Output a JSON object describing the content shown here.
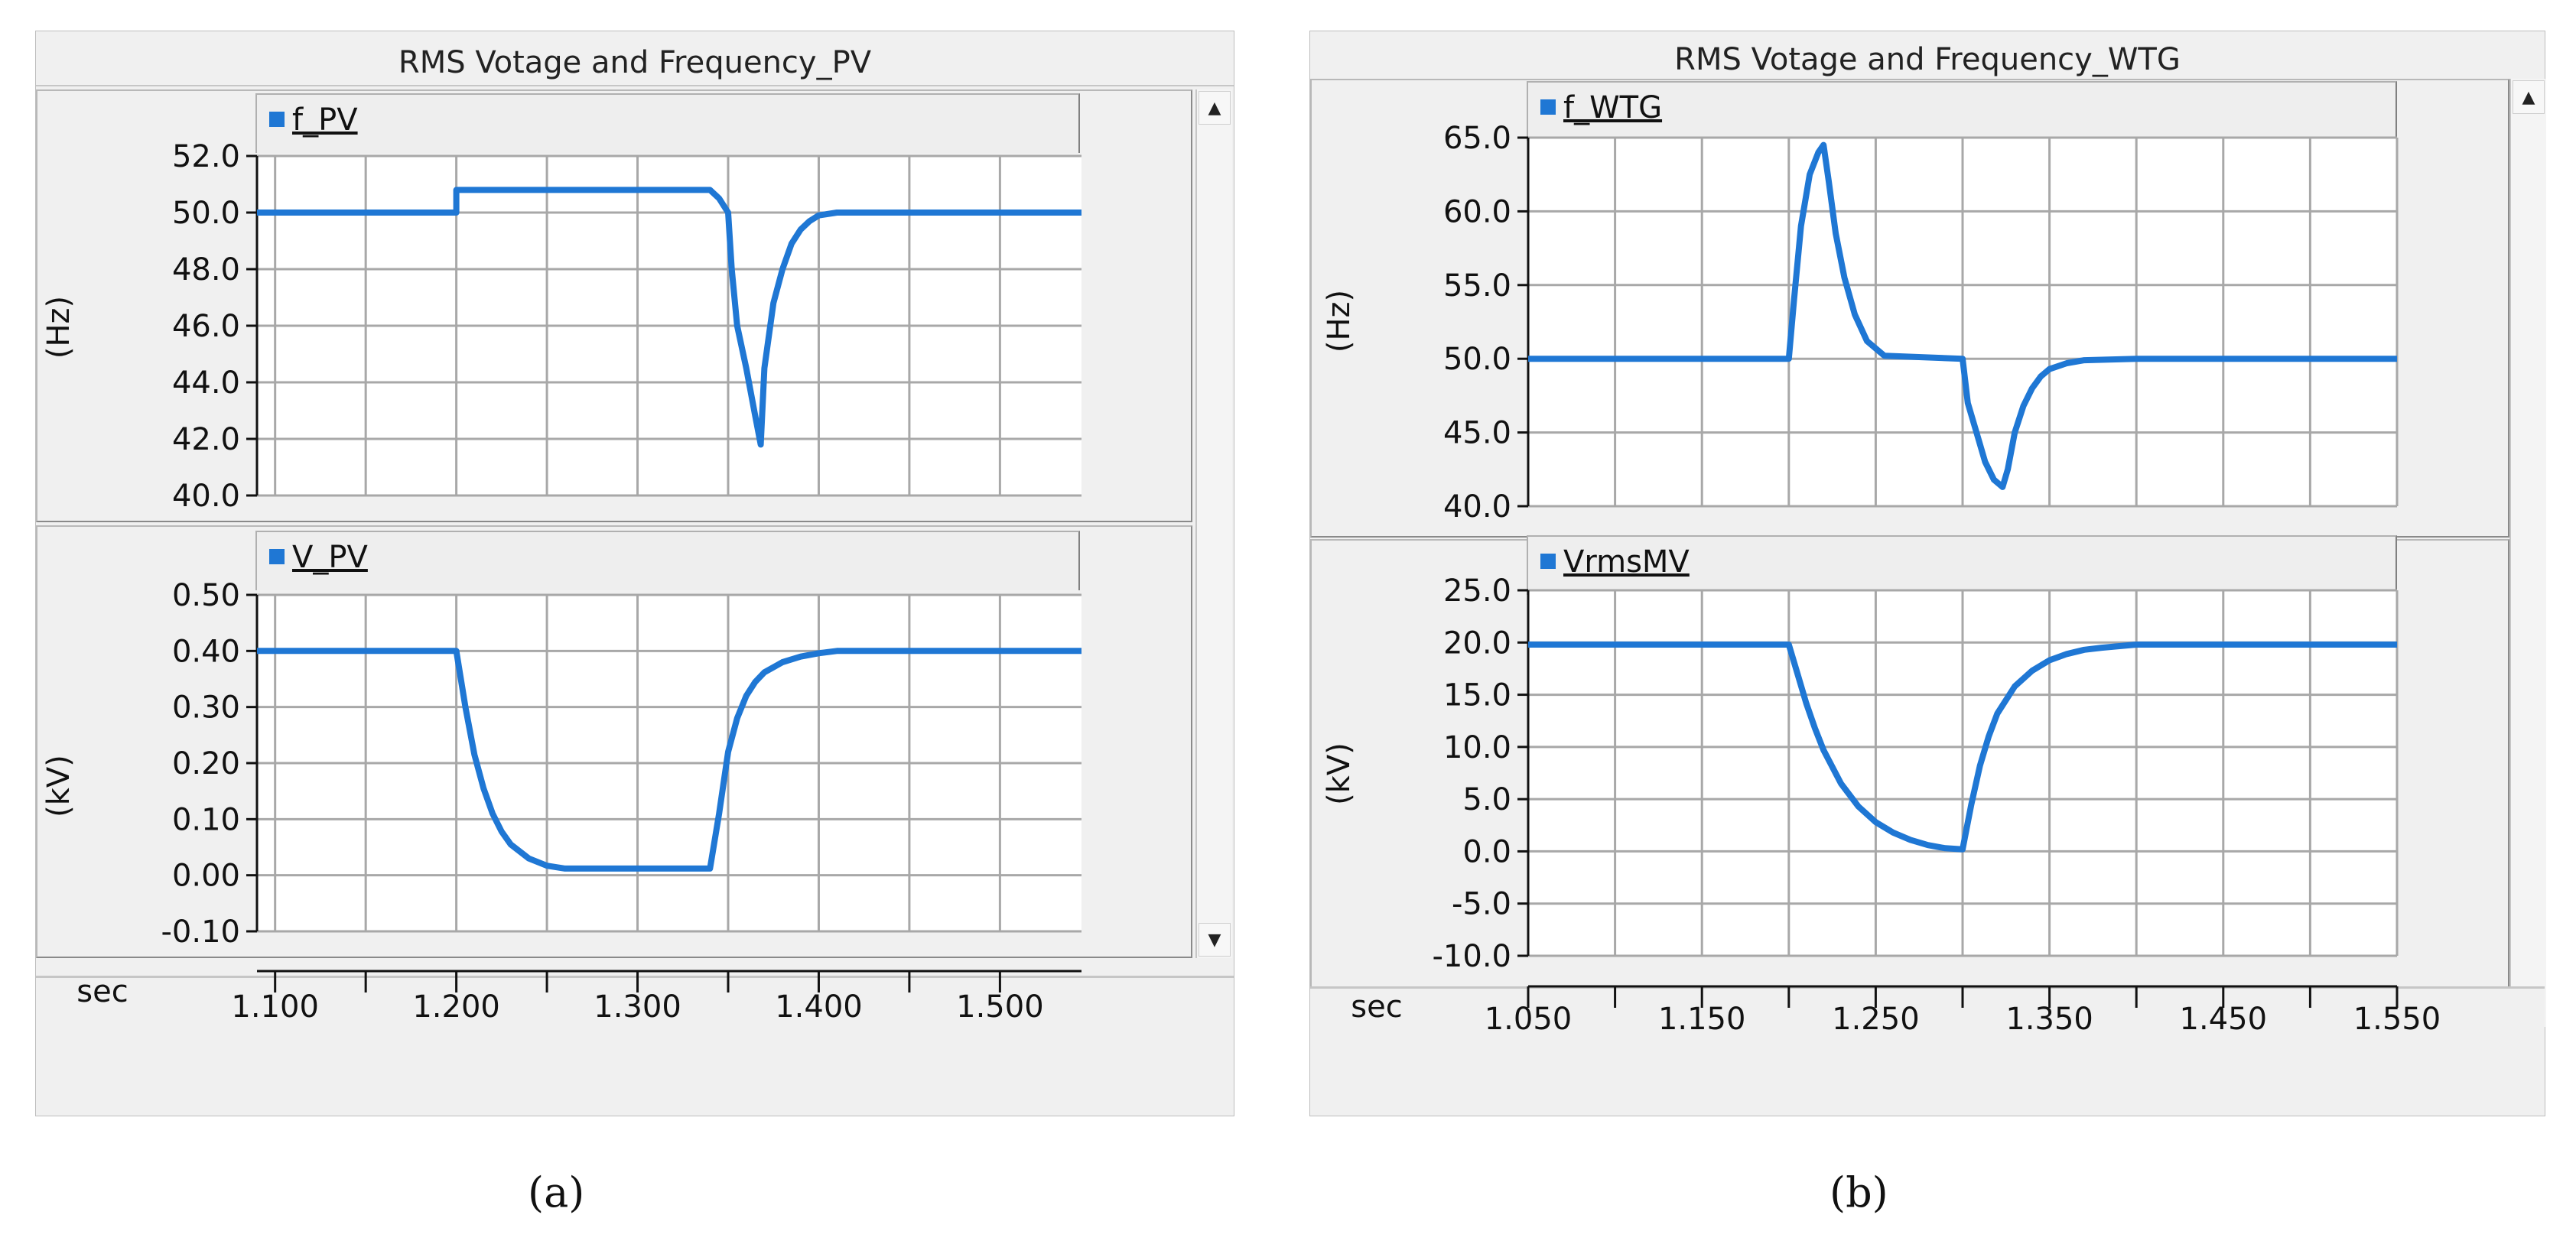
{
  "chart_data": [
    {
      "id": "a",
      "type": "line",
      "title": "RMS Votage and Frequency_PV",
      "caption": "(a)",
      "xlabel": "sec",
      "xlim": [
        1.09,
        1.545
      ],
      "xticks": [
        1.1,
        1.15,
        1.2,
        1.25,
        1.3,
        1.35,
        1.4,
        1.45,
        1.5
      ],
      "xtick_labels": [
        "1.100",
        "",
        "1.200",
        "",
        "1.300",
        "",
        "1.400",
        "",
        "1.500"
      ],
      "grid": true,
      "subplots": [
        {
          "series_name": "f_PV",
          "ylabel": "(Hz)",
          "ylim": [
            40.0,
            52.0
          ],
          "yticks": [
            40.0,
            42.0,
            44.0,
            46.0,
            48.0,
            50.0,
            52.0
          ],
          "ytick_labels": [
            "40.0",
            "42.0",
            "44.0",
            "46.0",
            "48.0",
            "50.0",
            "52.0"
          ],
          "color": "#1f77d4",
          "x": [
            1.09,
            1.2,
            1.2,
            1.34,
            1.345,
            1.35,
            1.352,
            1.355,
            1.36,
            1.365,
            1.368,
            1.37,
            1.375,
            1.38,
            1.385,
            1.39,
            1.395,
            1.4,
            1.41,
            1.545
          ],
          "y": [
            50.0,
            50.0,
            50.8,
            50.8,
            50.5,
            50.0,
            48.0,
            46.0,
            44.5,
            42.8,
            41.8,
            44.5,
            46.8,
            48.0,
            48.9,
            49.4,
            49.7,
            49.9,
            50.0,
            50.0
          ]
        },
        {
          "series_name": "V_PV",
          "ylabel": "(kV)",
          "ylim": [
            -0.1,
            0.5
          ],
          "yticks": [
            -0.1,
            0.0,
            0.1,
            0.2,
            0.3,
            0.4,
            0.5
          ],
          "ytick_labels": [
            "-0.10",
            "0.00",
            "0.10",
            "0.20",
            "0.30",
            "0.40",
            "0.50"
          ],
          "color": "#1f77d4",
          "x": [
            1.09,
            1.2,
            1.205,
            1.21,
            1.215,
            1.22,
            1.225,
            1.23,
            1.24,
            1.25,
            1.26,
            1.34,
            1.345,
            1.35,
            1.355,
            1.36,
            1.365,
            1.37,
            1.38,
            1.39,
            1.4,
            1.41,
            1.545
          ],
          "y": [
            0.4,
            0.4,
            0.3,
            0.215,
            0.155,
            0.11,
            0.078,
            0.055,
            0.03,
            0.017,
            0.012,
            0.012,
            0.11,
            0.22,
            0.28,
            0.32,
            0.345,
            0.362,
            0.38,
            0.39,
            0.396,
            0.4,
            0.4
          ]
        }
      ]
    },
    {
      "id": "b",
      "type": "line",
      "title": "RMS Votage and Frequency_WTG",
      "caption": "(b)",
      "xlabel": "sec",
      "xlim": [
        1.05,
        1.55
      ],
      "xticks": [
        1.05,
        1.1,
        1.15,
        1.2,
        1.25,
        1.3,
        1.35,
        1.4,
        1.45,
        1.5,
        1.55
      ],
      "xtick_labels": [
        "1.050",
        "",
        "1.150",
        "",
        "1.250",
        "",
        "1.350",
        "",
        "1.450",
        "",
        "1.550"
      ],
      "grid": true,
      "subplots": [
        {
          "series_name": "f_WTG",
          "ylabel": "(Hz)",
          "ylim": [
            40.0,
            65.0
          ],
          "yticks": [
            40.0,
            45.0,
            50.0,
            55.0,
            60.0,
            65.0
          ],
          "ytick_labels": [
            "40.0",
            "45.0",
            "50.0",
            "55.0",
            "60.0",
            "65.0"
          ],
          "color": "#1f77d4",
          "x": [
            1.05,
            1.2,
            1.203,
            1.207,
            1.212,
            1.217,
            1.22,
            1.223,
            1.227,
            1.232,
            1.238,
            1.245,
            1.255,
            1.3,
            1.303,
            1.308,
            1.313,
            1.318,
            1.323,
            1.326,
            1.33,
            1.335,
            1.34,
            1.345,
            1.35,
            1.36,
            1.37,
            1.4,
            1.55
          ],
          "y": [
            50.0,
            50.0,
            54.0,
            59.0,
            62.5,
            64.0,
            64.5,
            62.0,
            58.5,
            55.5,
            53.0,
            51.2,
            50.2,
            50.0,
            47.0,
            45.0,
            43.0,
            41.8,
            41.3,
            42.5,
            45.0,
            46.8,
            48.0,
            48.8,
            49.3,
            49.7,
            49.9,
            50.0,
            50.0
          ]
        },
        {
          "series_name": "VrmsMV",
          "ylabel": "(kV)",
          "ylim": [
            -10.0,
            25.0
          ],
          "yticks": [
            -10.0,
            -5.0,
            0.0,
            5.0,
            10.0,
            15.0,
            20.0,
            25.0
          ],
          "ytick_labels": [
            "-10.0",
            "-5.0",
            "0.0",
            "5.0",
            "10.0",
            "15.0",
            "20.0",
            "25.0"
          ],
          "color": "#1f77d4",
          "x": [
            1.05,
            1.2,
            1.205,
            1.21,
            1.215,
            1.22,
            1.23,
            1.24,
            1.25,
            1.26,
            1.27,
            1.28,
            1.29,
            1.3,
            1.305,
            1.31,
            1.315,
            1.32,
            1.33,
            1.34,
            1.35,
            1.36,
            1.37,
            1.38,
            1.4,
            1.55
          ],
          "y": [
            19.8,
            19.8,
            17.0,
            14.2,
            11.8,
            9.7,
            6.5,
            4.3,
            2.8,
            1.8,
            1.1,
            0.6,
            0.3,
            0.2,
            4.5,
            8.2,
            11.0,
            13.2,
            15.8,
            17.3,
            18.3,
            18.9,
            19.3,
            19.5,
            19.8,
            19.8
          ]
        }
      ]
    }
  ]
}
